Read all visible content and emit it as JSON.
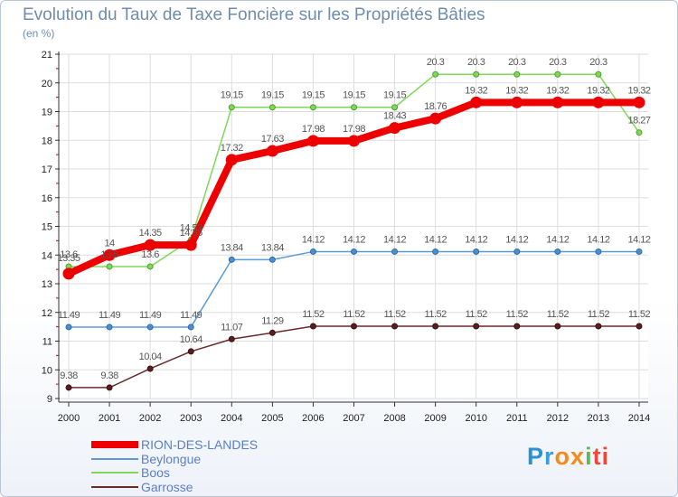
{
  "chart_data": {
    "type": "line",
    "title": "Evolution du Taux de Taxe Foncière sur les Propriétés Bâties",
    "unit_label": "(en %)",
    "x": [
      "2000",
      "2001",
      "2002",
      "2003",
      "2004",
      "2005",
      "2006",
      "2007",
      "2008",
      "2009",
      "2010",
      "2011",
      "2012",
      "2013",
      "2014"
    ],
    "ylim": [
      9,
      21
    ],
    "y_ticks": [
      9,
      10,
      11,
      12,
      13,
      14,
      15,
      16,
      17,
      18,
      19,
      20,
      21
    ],
    "series": [
      {
        "name": "RION-DES-LANDES",
        "color": "#ee0000",
        "values": [
          13.35,
          14,
          14.35,
          14.35,
          17.32,
          17.63,
          17.98,
          17.98,
          18.43,
          18.76,
          19.32,
          19.32,
          19.32,
          19.32,
          19.32
        ],
        "labels": [
          "13.35",
          "14",
          "14.35",
          "14.35",
          "17.32",
          "17.63",
          "17.98",
          "17.98",
          "18.43",
          "18.76",
          "19.32",
          "19.32",
          "19.32",
          "19.32",
          "19.32"
        ]
      },
      {
        "name": "Beylongue",
        "color": "#5b9bd5",
        "values": [
          11.49,
          11.49,
          11.49,
          11.49,
          13.84,
          13.84,
          14.12,
          14.12,
          14.12,
          14.12,
          14.12,
          14.12,
          14.12,
          14.12,
          14.12
        ],
        "labels": [
          "11.49",
          "11.49",
          "11.49",
          "11.49",
          "13.84",
          "13.84",
          "14.12",
          "14.12",
          "14.12",
          "14.12",
          "14.12",
          "14.12",
          "14.12",
          "14.12",
          "14.12"
        ]
      },
      {
        "name": "Boos",
        "color": "#7ed957",
        "values": [
          13.6,
          13.6,
          13.6,
          14.53,
          19.15,
          19.15,
          19.15,
          19.15,
          19.15,
          20.3,
          20.3,
          20.3,
          20.3,
          20.3,
          18.27
        ],
        "labels": [
          "13.6",
          "13.6",
          "13.6",
          "14.53",
          "19.15",
          "19.15",
          "19.15",
          "19.15",
          "19.15",
          "20.3",
          "20.3",
          "20.3",
          "20.3",
          "20.3",
          "18.27"
        ]
      },
      {
        "name": "Garrosse",
        "color": "#6b2a2a",
        "values": [
          9.38,
          9.38,
          10.04,
          10.64,
          11.07,
          11.29,
          11.52,
          11.52,
          11.52,
          11.52,
          11.52,
          11.52,
          11.52,
          11.52,
          11.52
        ],
        "labels": [
          "9.38",
          "9.38",
          "10.04",
          "10.64",
          "11.07",
          "11.29",
          "11.52",
          "11.52",
          "11.52",
          "11.52",
          "11.52",
          "11.52",
          "11.52",
          "11.52",
          "11.52"
        ]
      }
    ],
    "legend": [
      "RION-DES-LANDES",
      "Beylongue",
      "Boos",
      "Garrosse"
    ]
  },
  "logo": {
    "letters": [
      "P",
      "r",
      "o",
      "x",
      "i",
      "ti"
    ]
  }
}
